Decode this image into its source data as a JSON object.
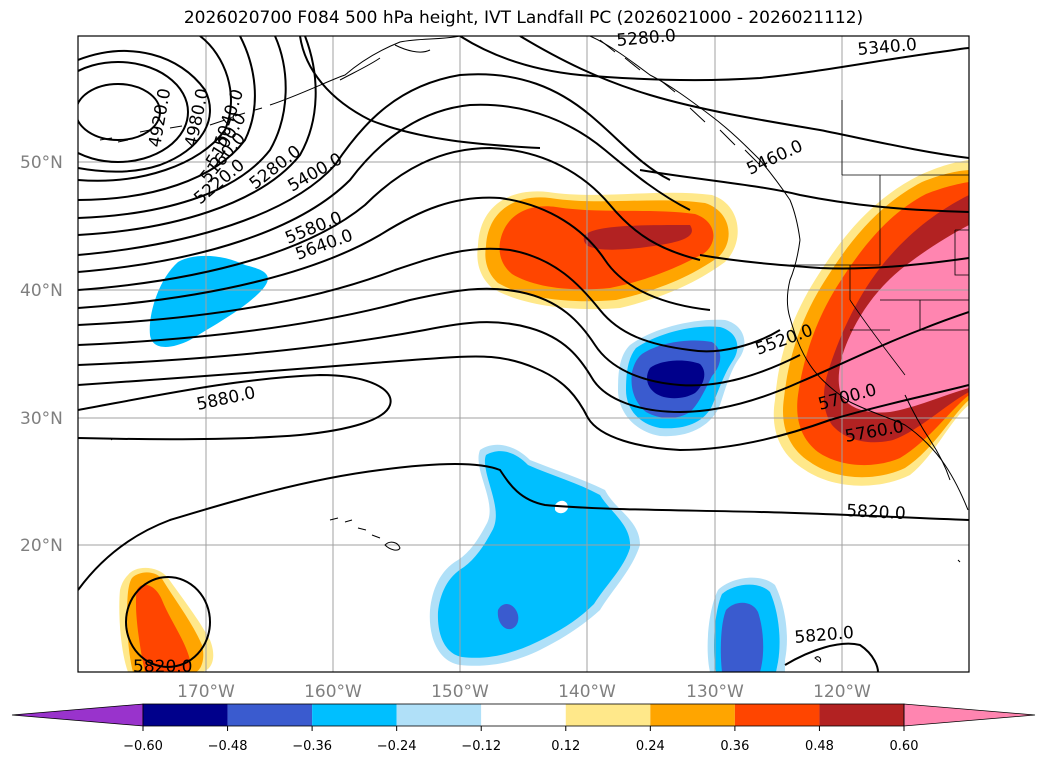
{
  "title": "2026020700 F084 500 hPa height, IVT Landfall PC (2026021000 - 2026021112)",
  "map": {
    "lat_labels": [
      "50°N",
      "40°N",
      "30°N",
      "20°N"
    ],
    "lon_labels": [
      "170°W",
      "160°W",
      "150°W",
      "140°W",
      "130°W",
      "120°W"
    ],
    "contour_labels": [
      "4920.0",
      "4980.0",
      "5040.0",
      "5100.0",
      "5160.0",
      "5220.0",
      "5280.0",
      "5400.0",
      "5580.0",
      "5640.0",
      "5880.0",
      "5340.0",
      "5280.0",
      "5460.0",
      "5520.0",
      "5700.0",
      "5760.0",
      "5820.0",
      "5820.0",
      "5820.0"
    ]
  },
  "colorbar": {
    "ticks": [
      "−0.60",
      "−0.48",
      "−0.36",
      "−0.24",
      "−0.12",
      "0.12",
      "0.24",
      "0.36",
      "0.48",
      "0.60"
    ],
    "colors": [
      "#9933cc",
      "#00008b",
      "#3a5bcf",
      "#00bfff",
      "#b0e0f8",
      "#ffffff",
      "#ffe88a",
      "#ffa500",
      "#ff4500",
      "#b22222",
      "#ff85b0",
      "#ff85b0"
    ]
  },
  "colors": {
    "frame": "#000000",
    "grid": "#a0a0a0",
    "coast": "#000000"
  }
}
